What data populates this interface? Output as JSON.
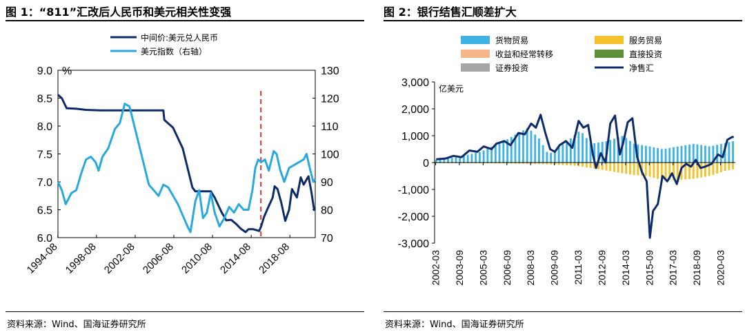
{
  "left": {
    "title": "图 1：“811”汇改后人民币和美元相关性变强",
    "source": "资料来源：Wind、国海证券研究所",
    "chart_data": {
      "type": "line",
      "legend": [
        "中间价:美元兑人民币",
        "美元指数（右轴）"
      ],
      "left_unit": "%",
      "left_ticks": [
        "9.0",
        "8.5",
        "8.0",
        "7.5",
        "7.0",
        "6.5",
        "6.0"
      ],
      "right_ticks": [
        "130",
        "120",
        "110",
        "100",
        "90",
        "80",
        "70"
      ],
      "x_ticks": [
        "1994-08",
        "1998-08",
        "2002-08",
        "2006-08",
        "2010-08",
        "2014-08",
        "2018-08"
      ],
      "ylim_left": [
        6.0,
        9.0
      ],
      "ylim_right": [
        70,
        130
      ],
      "reference_line_x": "2015-08",
      "series": [
        {
          "name": "中间价:美元兑人民币",
          "axis": "left",
          "color": "#0d2a6b",
          "points": [
            [
              1994.6,
              8.56
            ],
            [
              1995.0,
              8.5
            ],
            [
              1995.5,
              8.32
            ],
            [
              1996.5,
              8.31
            ],
            [
              1997.5,
              8.29
            ],
            [
              1999,
              8.28
            ],
            [
              2001,
              8.28
            ],
            [
              2003,
              8.28
            ],
            [
              2005.5,
              8.28
            ],
            [
              2005.6,
              8.11
            ],
            [
              2006.5,
              7.97
            ],
            [
              2007.5,
              7.6
            ],
            [
              2008.5,
              6.9
            ],
            [
              2008.8,
              6.83
            ],
            [
              2010.4,
              6.83
            ],
            [
              2010.8,
              6.72
            ],
            [
              2011.5,
              6.46
            ],
            [
              2012.0,
              6.31
            ],
            [
              2012.5,
              6.32
            ],
            [
              2013.0,
              6.25
            ],
            [
              2013.5,
              6.16
            ],
            [
              2014.0,
              6.1
            ],
            [
              2014.3,
              6.15
            ],
            [
              2014.8,
              6.15
            ],
            [
              2015.4,
              6.12
            ],
            [
              2015.6,
              6.2
            ],
            [
              2015.9,
              6.37
            ],
            [
              2016.3,
              6.53
            ],
            [
              2016.8,
              6.72
            ],
            [
              2017.0,
              6.92
            ],
            [
              2017.3,
              6.87
            ],
            [
              2017.7,
              6.62
            ],
            [
              2018.1,
              6.3
            ],
            [
              2018.5,
              6.5
            ],
            [
              2018.8,
              6.87
            ],
            [
              2019.3,
              6.72
            ],
            [
              2019.7,
              7.08
            ],
            [
              2020.0,
              6.95
            ],
            [
              2020.5,
              7.1
            ],
            [
              2020.8,
              6.82
            ],
            [
              2021.1,
              6.48
            ]
          ]
        },
        {
          "name": "美元指数（右轴）",
          "axis": "right",
          "color": "#29a8e0",
          "points": [
            [
              1994.6,
              90
            ],
            [
              1995.0,
              87
            ],
            [
              1995.4,
              82
            ],
            [
              1996.0,
              86
            ],
            [
              1996.5,
              87
            ],
            [
              1997.0,
              93
            ],
            [
              1997.5,
              98
            ],
            [
              1998.0,
              99
            ],
            [
              1998.5,
              97
            ],
            [
              1998.8,
              94
            ],
            [
              1999.2,
              99
            ],
            [
              1999.8,
              102
            ],
            [
              2000.5,
              109
            ],
            [
              2001.0,
              111
            ],
            [
              2001.5,
              118
            ],
            [
              2002.0,
              117
            ],
            [
              2002.5,
              110
            ],
            [
              2003.0,
              103
            ],
            [
              2003.5,
              96
            ],
            [
              2004.0,
              89
            ],
            [
              2004.5,
              87
            ],
            [
              2005.0,
              85
            ],
            [
              2005.5,
              89
            ],
            [
              2006.0,
              88
            ],
            [
              2006.5,
              85
            ],
            [
              2007.0,
              82
            ],
            [
              2007.5,
              78
            ],
            [
              2008.0,
              74
            ],
            [
              2008.3,
              72
            ],
            [
              2008.8,
              83
            ],
            [
              2009.2,
              87
            ],
            [
              2009.6,
              77
            ],
            [
              2010.0,
              79
            ],
            [
              2010.4,
              86
            ],
            [
              2010.8,
              79
            ],
            [
              2011.3,
              74
            ],
            [
              2011.8,
              77
            ],
            [
              2012.3,
              81
            ],
            [
              2012.8,
              79
            ],
            [
              2013.3,
              82
            ],
            [
              2013.8,
              80
            ],
            [
              2014.3,
              80
            ],
            [
              2014.7,
              87
            ],
            [
              2015.0,
              95
            ],
            [
              2015.3,
              98
            ],
            [
              2015.6,
              97
            ],
            [
              2016.0,
              98
            ],
            [
              2016.4,
              94
            ],
            [
              2016.9,
              101
            ],
            [
              2017.2,
              100
            ],
            [
              2017.6,
              94
            ],
            [
              2018.0,
              90
            ],
            [
              2018.5,
              95
            ],
            [
              2019.0,
              96
            ],
            [
              2019.5,
              97
            ],
            [
              2020.0,
              98
            ],
            [
              2020.3,
              100
            ],
            [
              2020.7,
              94
            ],
            [
              2021.0,
              90
            ],
            [
              2021.2,
              91
            ]
          ]
        }
      ]
    }
  },
  "right": {
    "title": "图 2：银行结售汇顺差扩大",
    "source": "资料来源：Wind、国海证券研究所",
    "chart_data": {
      "type": "bar",
      "unit": "亿美元",
      "y_ticks": [
        "3,000",
        "2,000",
        "1,000",
        "0",
        "-1,000",
        "-2,000",
        "-3,000"
      ],
      "ylim": [
        -3000,
        3000
      ],
      "x_ticks": [
        "2002-03",
        "2003-09",
        "2005-03",
        "2006-09",
        "2008-03",
        "2009-09",
        "2011-03",
        "2012-09",
        "2014-03",
        "2015-09",
        "2017-03",
        "2018-09",
        "2020-03"
      ],
      "legend": [
        {
          "name": "货物贸易",
          "color": "#3fb3e6"
        },
        {
          "name": "服务贸易",
          "color": "#f3c12a"
        },
        {
          "name": "收益和经常转移",
          "color": "#f7b58a"
        },
        {
          "name": "直接投资",
          "color": "#5e8f3a"
        },
        {
          "name": "证券投资",
          "color": "#a6a6a6"
        },
        {
          "name": "净售汇",
          "color": "#0d2a6b"
        }
      ],
      "series": [
        {
          "name": "货物贸易",
          "time": [
            2002.2,
            2021.0
          ],
          "keys": [
            [
              2002.2,
              100
            ],
            [
              2003.5,
              200
            ],
            [
              2005.0,
              400
            ],
            [
              2006.5,
              800
            ],
            [
              2008.0,
              1300
            ],
            [
              2008.7,
              900
            ],
            [
              2009.3,
              300
            ],
            [
              2010.5,
              800
            ],
            [
              2011.3,
              1200
            ],
            [
              2012.0,
              700
            ],
            [
              2013.0,
              800
            ],
            [
              2014.0,
              1000
            ],
            [
              2014.7,
              700
            ],
            [
              2015.7,
              600
            ],
            [
              2016.5,
              500
            ],
            [
              2017.5,
              600
            ],
            [
              2018.5,
              700
            ],
            [
              2019.5,
              600
            ],
            [
              2021.0,
              800
            ]
          ]
        },
        {
          "name": "服务贸易",
          "time": [
            2002.2,
            2021.0
          ],
          "keys": [
            [
              2002.2,
              -20
            ],
            [
              2006.0,
              -30
            ],
            [
              2009.0,
              -60
            ],
            [
              2011.0,
              -120
            ],
            [
              2012.5,
              -250
            ],
            [
              2013.5,
              -350
            ],
            [
              2014.5,
              -450
            ],
            [
              2015.5,
              -500
            ],
            [
              2016.5,
              -650
            ],
            [
              2017.5,
              -650
            ],
            [
              2018.5,
              -600
            ],
            [
              2019.5,
              -500
            ],
            [
              2020.5,
              -300
            ],
            [
              2021.0,
              -250
            ]
          ]
        },
        {
          "name": "净售汇",
          "time": [
            2002.2,
            2021.0
          ],
          "points": [
            [
              2002.2,
              120
            ],
            [
              2002.8,
              150
            ],
            [
              2003.3,
              250
            ],
            [
              2003.8,
              200
            ],
            [
              2004.3,
              450
            ],
            [
              2004.8,
              400
            ],
            [
              2005.2,
              600
            ],
            [
              2005.7,
              500
            ],
            [
              2006.0,
              700
            ],
            [
              2006.5,
              800
            ],
            [
              2006.9,
              650
            ],
            [
              2007.4,
              1100
            ],
            [
              2007.8,
              1050
            ],
            [
              2008.2,
              1450
            ],
            [
              2008.5,
              1300
            ],
            [
              2008.8,
              1780
            ],
            [
              2009.1,
              1100
            ],
            [
              2009.4,
              500
            ],
            [
              2009.7,
              400
            ],
            [
              2010.0,
              650
            ],
            [
              2010.4,
              800
            ],
            [
              2010.8,
              550
            ],
            [
              2011.2,
              1550
            ],
            [
              2011.5,
              1300
            ],
            [
              2011.8,
              1400
            ],
            [
              2012.1,
              300
            ],
            [
              2012.3,
              -200
            ],
            [
              2012.6,
              350
            ],
            [
              2012.9,
              0
            ],
            [
              2013.2,
              1450
            ],
            [
              2013.5,
              1750
            ],
            [
              2013.8,
              300
            ],
            [
              2014.0,
              700
            ],
            [
              2014.3,
              1500
            ],
            [
              2014.6,
              1650
            ],
            [
              2014.9,
              200
            ],
            [
              2015.2,
              -350
            ],
            [
              2015.5,
              -700
            ],
            [
              2015.7,
              -2800
            ],
            [
              2015.9,
              -1800
            ],
            [
              2016.2,
              -1550
            ],
            [
              2016.5,
              -500
            ],
            [
              2016.8,
              -700
            ],
            [
              2017.1,
              -400
            ],
            [
              2017.4,
              -800
            ],
            [
              2017.7,
              -200
            ],
            [
              2018.0,
              -50
            ],
            [
              2018.3,
              -150
            ],
            [
              2018.6,
              100
            ],
            [
              2018.9,
              -200
            ],
            [
              2019.2,
              -150
            ],
            [
              2019.6,
              -50
            ],
            [
              2020.0,
              300
            ],
            [
              2020.3,
              200
            ],
            [
              2020.6,
              850
            ],
            [
              2020.9,
              950
            ],
            [
              2021.0,
              950
            ]
          ]
        }
      ]
    }
  }
}
